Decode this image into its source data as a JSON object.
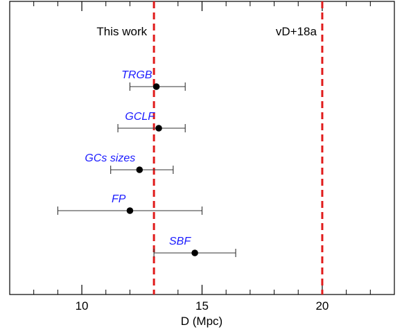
{
  "chart_data": {
    "type": "scatter",
    "xlabel": "D (Mpc)",
    "xlim": [
      7,
      23
    ],
    "ylim": [
      0,
      6
    ],
    "xticks_major": [
      10,
      15,
      20
    ],
    "xticks_minor": [
      8,
      9,
      11,
      12,
      13,
      14,
      16,
      17,
      18,
      19,
      21,
      22
    ],
    "grid": false,
    "points": [
      {
        "label": "TRGB",
        "x": 13.1,
        "xerr_low": 12.0,
        "xerr_high": 14.3,
        "y": 5
      },
      {
        "label": "GCLF",
        "x": 13.2,
        "xerr_low": 11.5,
        "xerr_high": 14.3,
        "y": 4
      },
      {
        "label": "GCs sizes",
        "x": 12.4,
        "xerr_low": 11.2,
        "xerr_high": 13.8,
        "y": 3
      },
      {
        "label": "FP",
        "x": 12.0,
        "xerr_low": 9.0,
        "xerr_high": 15.0,
        "y": 2
      },
      {
        "label": "SBF",
        "x": 14.7,
        "xerr_low": 13.0,
        "xerr_high": 16.4,
        "y": 1
      }
    ],
    "reference_lines": [
      {
        "label": "This work",
        "x": 13.0,
        "color": "#e01b1b",
        "style": "dashed"
      },
      {
        "label": "vD+18a",
        "x": 20.0,
        "color": "#e01b1b",
        "style": "dashed"
      }
    ],
    "label_color": "#1a1aff"
  }
}
